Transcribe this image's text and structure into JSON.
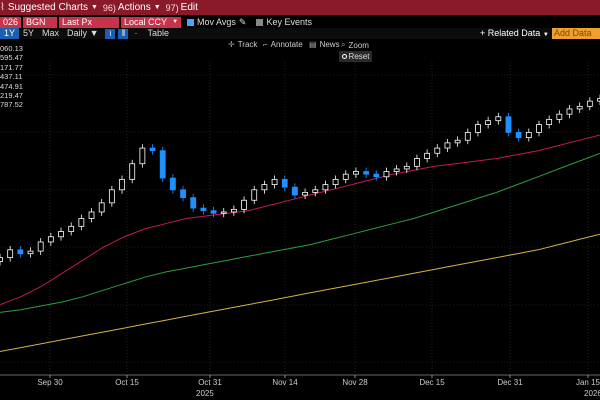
{
  "topbar": {
    "menus": [
      {
        "num": "",
        "label": "Suggested Charts"
      },
      {
        "num": "96)",
        "label": "Actions"
      },
      {
        "num": "97)",
        "label": "Edit"
      }
    ]
  },
  "toolbar1": {
    "security": "026",
    "source": "BGN",
    "field": "Last Px",
    "currency": "Local CCY",
    "mov_avgs_label": "Mov Avgs",
    "key_events_label": "Key Events"
  },
  "toolbar2": {
    "periods": [
      "1Y",
      "5Y",
      "Max"
    ],
    "frequency": "Daily",
    "table_label": "Table",
    "related_data_label": "+ Related Data",
    "add_data_label": "Add Data"
  },
  "chart_controls": {
    "track_label": "Track",
    "annotate_label": "Annotate",
    "news_label": "News",
    "zoom_label": "Zoom",
    "reset_label": "Reset"
  },
  "legend_values": [
    "060.13",
    "595.47",
    "171.77",
    "437.11",
    "474.91",
    "219.47",
    "787.52"
  ],
  "colors": {
    "candle_up": "#ffffff",
    "candle_down": "#1e90ff",
    "ma_short": "#c2185b",
    "ma_mid": "#2e9e3e",
    "ma_long": "#d4b24a",
    "grid": "#3a3a3a"
  },
  "chart_data": {
    "type": "candlestick",
    "title": "",
    "xlabel": "",
    "ylabel": "",
    "x_ticks": [
      "Sep 30",
      "Oct 15",
      "Oct 31",
      "Nov 14",
      "Nov 28",
      "Dec 15",
      "Dec 31",
      "Jan 15"
    ],
    "year_labels": [
      "2025",
      "2026"
    ],
    "grid": true,
    "series": [
      {
        "name": "Price",
        "values": [
          270,
          276,
          273,
          275,
          282,
          286,
          290,
          294,
          300,
          305,
          312,
          322,
          330,
          342,
          354,
          352,
          331,
          322,
          316,
          308,
          306,
          304,
          305,
          307,
          314,
          322,
          326,
          330,
          324,
          318,
          320,
          322,
          326,
          330,
          334,
          336,
          334,
          332,
          336,
          338,
          340,
          346,
          350,
          354,
          358,
          360,
          366,
          372,
          375,
          378,
          366,
          362,
          366,
          372,
          376,
          380,
          384,
          386,
          390,
          392
        ]
      },
      {
        "name": "MA1",
        "values": [
          234,
          240,
          248,
          258,
          268,
          278,
          286,
          292,
          296,
          300,
          302,
          304,
          306,
          310,
          314,
          318,
          322,
          326,
          330,
          334,
          337,
          340,
          342,
          344,
          346,
          349,
          352,
          356,
          360,
          364
        ]
      },
      {
        "name": "MA2",
        "values": [
          228,
          230,
          233,
          236,
          240,
          245,
          250,
          255,
          259,
          262,
          265,
          268,
          271,
          274,
          277,
          280,
          284,
          288,
          292,
          296,
          300,
          305,
          310,
          315,
          320,
          326,
          332,
          338,
          344,
          350
        ]
      },
      {
        "name": "MA3",
        "values": [
          198,
          201,
          204,
          207,
          210,
          213,
          216,
          219,
          222,
          225,
          228,
          231,
          234,
          237,
          240,
          243,
          246,
          249,
          252,
          255,
          258,
          261,
          264,
          267,
          270,
          273,
          276,
          280,
          284,
          288
        ]
      }
    ],
    "ylim": [
      180,
      420
    ]
  }
}
